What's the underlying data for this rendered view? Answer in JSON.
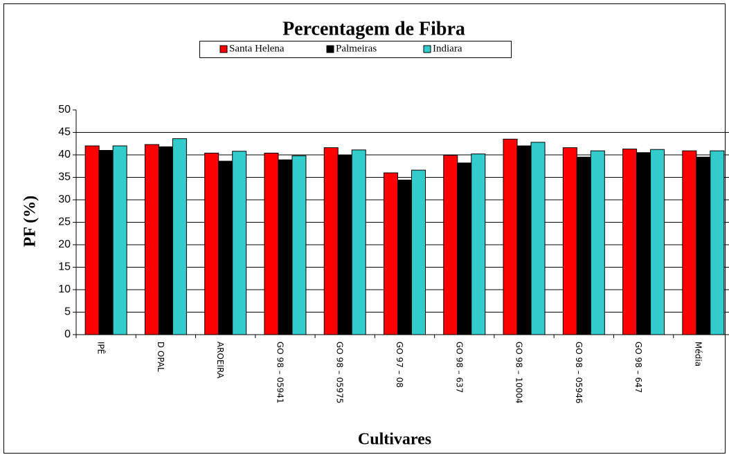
{
  "chart_data": {
    "type": "bar",
    "title": "Percentagem de Fibra",
    "x_label": "Cultivares",
    "y_label": "PF (%)",
    "categories": [
      "IPÊ",
      "D OPAL",
      "AROEIRA",
      "GO 98 – 05941",
      "GO 98 – 05975",
      "GO 97 – 08",
      "GO 98 – 637",
      "GO 98 – 10004",
      "GO 98 – 05946",
      "GO 98 – 647",
      "Média"
    ],
    "series": [
      {
        "name": "Santa Helena",
        "color": "#ff0000",
        "values": [
          42,
          42.3,
          40.4,
          40.4,
          41.6,
          36,
          39.9,
          43.5,
          41.6,
          41.3,
          40.9
        ]
      },
      {
        "name": "Palmeiras",
        "color": "#000000",
        "values": [
          41,
          41.8,
          38.6,
          38.9,
          40,
          34.4,
          38.2,
          42,
          39.5,
          40.5,
          39.5
        ]
      },
      {
        "name": "Indiara",
        "color": "#33cccc",
        "values": [
          42,
          43.6,
          40.8,
          39.8,
          41.1,
          36.6,
          40.2,
          42.8,
          40.9,
          41.2,
          40.9
        ]
      }
    ],
    "ylim": [
      0,
      50
    ],
    "yticks": [
      0,
      5,
      10,
      15,
      20,
      25,
      30,
      35,
      40,
      45,
      50
    ],
    "grid": true,
    "legend": "top"
  }
}
